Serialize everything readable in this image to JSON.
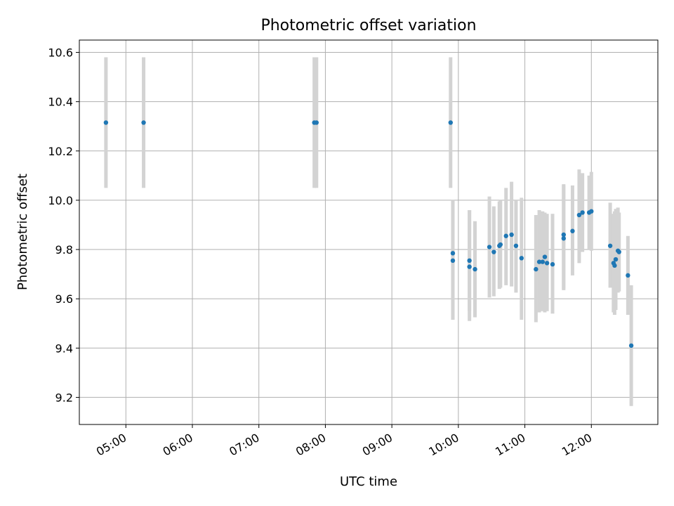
{
  "chart_data": {
    "type": "scatter",
    "title": "Photometric offset variation",
    "xlabel": "UTC time",
    "ylabel": "Photometric offset",
    "xlim": [
      "04:18",
      "13:00"
    ],
    "ylim": [
      9.09,
      10.65
    ],
    "x_ticks": [
      "05:00",
      "06:00",
      "07:00",
      "08:00",
      "09:00",
      "10:00",
      "11:00",
      "12:00"
    ],
    "y_ticks": [
      "9.2",
      "9.4",
      "9.6",
      "9.8",
      "10.0",
      "10.2",
      "10.4",
      "10.6"
    ],
    "grid": true,
    "legend": "none",
    "colors": {
      "point": "#1f77b4",
      "error_bar": "#d3d3d3",
      "grid": "#b0b0b0"
    },
    "points": [
      {
        "x": "04:42",
        "y": 10.315,
        "low": 10.05,
        "high": 10.58
      },
      {
        "x": "05:16",
        "y": 10.315,
        "low": 10.05,
        "high": 10.58
      },
      {
        "x": "07:50",
        "y": 10.315,
        "low": 10.05,
        "high": 10.58
      },
      {
        "x": "07:52",
        "y": 10.315,
        "low": 10.05,
        "high": 10.58
      },
      {
        "x": "09:53",
        "y": 10.315,
        "low": 10.05,
        "high": 10.58
      },
      {
        "x": "09:55",
        "y": 9.755,
        "low": 9.515,
        "high": 10.0
      },
      {
        "x": "09:55",
        "y": 9.785,
        "low": 9.515,
        "high": 10.0
      },
      {
        "x": "10:10",
        "y": 9.755,
        "low": 9.55,
        "high": 9.96
      },
      {
        "x": "10:10",
        "y": 9.73,
        "low": 9.51,
        "high": 9.96
      },
      {
        "x": "10:15",
        "y": 9.72,
        "low": 9.525,
        "high": 9.915
      },
      {
        "x": "10:28",
        "y": 9.81,
        "low": 9.605,
        "high": 10.015
      },
      {
        "x": "10:32",
        "y": 9.79,
        "low": 9.61,
        "high": 9.975
      },
      {
        "x": "10:37",
        "y": 9.815,
        "low": 9.64,
        "high": 9.995
      },
      {
        "x": "10:38",
        "y": 9.82,
        "low": 9.645,
        "high": 10.0
      },
      {
        "x": "10:43",
        "y": 9.855,
        "low": 9.655,
        "high": 10.05
      },
      {
        "x": "10:48",
        "y": 9.86,
        "low": 9.65,
        "high": 10.075
      },
      {
        "x": "10:52",
        "y": 9.815,
        "low": 9.625,
        "high": 10.0
      },
      {
        "x": "10:57",
        "y": 9.765,
        "low": 9.515,
        "high": 10.01
      },
      {
        "x": "11:10",
        "y": 9.72,
        "low": 9.505,
        "high": 9.94
      },
      {
        "x": "11:13",
        "y": 9.75,
        "low": 9.545,
        "high": 9.96
      },
      {
        "x": "11:16",
        "y": 9.75,
        "low": 9.55,
        "high": 9.955
      },
      {
        "x": "11:18",
        "y": 9.77,
        "low": 9.545,
        "high": 9.95
      },
      {
        "x": "11:20",
        "y": 9.745,
        "low": 9.55,
        "high": 9.945
      },
      {
        "x": "11:25",
        "y": 9.74,
        "low": 9.54,
        "high": 9.945
      },
      {
        "x": "11:35",
        "y": 9.845,
        "low": 9.635,
        "high": 10.065
      },
      {
        "x": "11:35",
        "y": 9.86,
        "low": 9.64,
        "high": 10.06
      },
      {
        "x": "11:43",
        "y": 9.875,
        "low": 9.695,
        "high": 10.06
      },
      {
        "x": "11:49",
        "y": 9.94,
        "low": 9.745,
        "high": 10.125
      },
      {
        "x": "11:52",
        "y": 9.95,
        "low": 9.79,
        "high": 10.11
      },
      {
        "x": "11:58",
        "y": 9.95,
        "low": 9.8,
        "high": 10.1
      },
      {
        "x": "12:00",
        "y": 9.955,
        "low": 9.795,
        "high": 10.115
      },
      {
        "x": "12:17",
        "y": 9.815,
        "low": 9.645,
        "high": 9.99
      },
      {
        "x": "12:20",
        "y": 9.745,
        "low": 9.545,
        "high": 9.945
      },
      {
        "x": "12:21",
        "y": 9.735,
        "low": 9.535,
        "high": 9.955
      },
      {
        "x": "12:22",
        "y": 9.76,
        "low": 9.555,
        "high": 9.965
      },
      {
        "x": "12:24",
        "y": 9.795,
        "low": 9.625,
        "high": 9.97
      },
      {
        "x": "12:25",
        "y": 9.79,
        "low": 9.63,
        "high": 9.95
      },
      {
        "x": "12:33",
        "y": 9.695,
        "low": 9.535,
        "high": 9.855
      },
      {
        "x": "12:36",
        "y": 9.41,
        "low": 9.165,
        "high": 9.655
      }
    ]
  }
}
